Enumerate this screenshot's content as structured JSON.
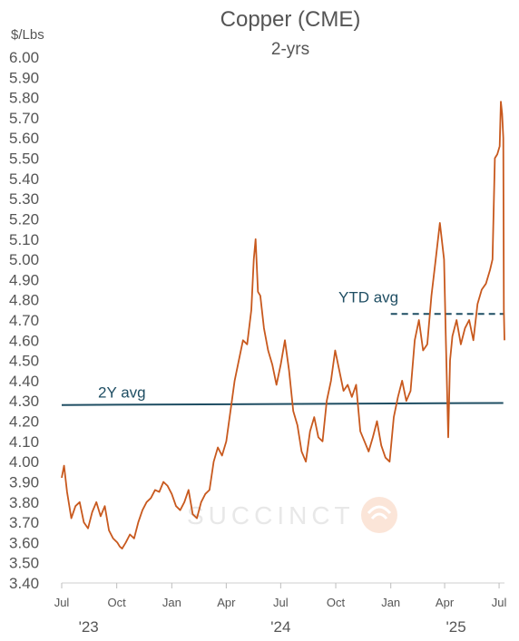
{
  "chart_data": {
    "type": "line",
    "title": "Copper (CME)",
    "subtitle": "2-yrs",
    "ylabel": "$/Lbs",
    "ylim": [
      3.4,
      6.0
    ],
    "yticks": [
      "6.00",
      "5.90",
      "5.80",
      "5.70",
      "5.60",
      "5.50",
      "5.40",
      "5.30",
      "5.20",
      "5.10",
      "5.00",
      "4.90",
      "4.80",
      "4.70",
      "4.60",
      "4.50",
      "4.40",
      "4.30",
      "4.20",
      "4.10",
      "4.00",
      "3.90",
      "3.80",
      "3.70",
      "3.60",
      "3.50",
      "3.40"
    ],
    "xticks": [
      "Jul",
      "Oct",
      "Jan",
      "Apr",
      "Jul",
      "Oct",
      "Jan",
      "Apr",
      "Jul"
    ],
    "xtick_dates": [
      "2023-07-01",
      "2023-10-01",
      "2024-01-01",
      "2024-04-01",
      "2024-07-01",
      "2024-10-01",
      "2025-01-01",
      "2025-04-01",
      "2025-07-01"
    ],
    "years": [
      "'23",
      "'24",
      "'25"
    ],
    "x_range": [
      "2023-07-01",
      "2025-07-10"
    ],
    "series": [
      {
        "color": "#c8591e",
        "points": [
          [
            "2023-07-01",
            3.92
          ],
          [
            "2023-07-05",
            3.98
          ],
          [
            "2023-07-10",
            3.85
          ],
          [
            "2023-07-17",
            3.72
          ],
          [
            "2023-07-24",
            3.78
          ],
          [
            "2023-07-31",
            3.8
          ],
          [
            "2023-08-07",
            3.7
          ],
          [
            "2023-08-14",
            3.67
          ],
          [
            "2023-08-21",
            3.75
          ],
          [
            "2023-08-28",
            3.8
          ],
          [
            "2023-09-04",
            3.73
          ],
          [
            "2023-09-11",
            3.78
          ],
          [
            "2023-09-18",
            3.66
          ],
          [
            "2023-09-25",
            3.62
          ],
          [
            "2023-10-02",
            3.6
          ],
          [
            "2023-10-06",
            3.58
          ],
          [
            "2023-10-10",
            3.57
          ],
          [
            "2023-10-16",
            3.6
          ],
          [
            "2023-10-23",
            3.64
          ],
          [
            "2023-10-30",
            3.62
          ],
          [
            "2023-11-06",
            3.7
          ],
          [
            "2023-11-13",
            3.76
          ],
          [
            "2023-11-20",
            3.8
          ],
          [
            "2023-11-27",
            3.82
          ],
          [
            "2023-12-04",
            3.86
          ],
          [
            "2023-12-11",
            3.85
          ],
          [
            "2023-12-18",
            3.9
          ],
          [
            "2023-12-25",
            3.88
          ],
          [
            "2024-01-01",
            3.84
          ],
          [
            "2024-01-08",
            3.78
          ],
          [
            "2024-01-15",
            3.76
          ],
          [
            "2024-01-22",
            3.8
          ],
          [
            "2024-01-29",
            3.86
          ],
          [
            "2024-02-05",
            3.74
          ],
          [
            "2024-02-12",
            3.72
          ],
          [
            "2024-02-19",
            3.8
          ],
          [
            "2024-02-26",
            3.84
          ],
          [
            "2024-03-04",
            3.86
          ],
          [
            "2024-03-11",
            4.0
          ],
          [
            "2024-03-18",
            4.07
          ],
          [
            "2024-03-25",
            4.03
          ],
          [
            "2024-04-01",
            4.1
          ],
          [
            "2024-04-08",
            4.25
          ],
          [
            "2024-04-15",
            4.4
          ],
          [
            "2024-04-22",
            4.5
          ],
          [
            "2024-04-29",
            4.6
          ],
          [
            "2024-05-06",
            4.58
          ],
          [
            "2024-05-13",
            4.75
          ],
          [
            "2024-05-17",
            5.0
          ],
          [
            "2024-05-20",
            5.1
          ],
          [
            "2024-05-24",
            4.84
          ],
          [
            "2024-05-28",
            4.82
          ],
          [
            "2024-06-03",
            4.66
          ],
          [
            "2024-06-10",
            4.55
          ],
          [
            "2024-06-17",
            4.48
          ],
          [
            "2024-06-24",
            4.38
          ],
          [
            "2024-07-01",
            4.48
          ],
          [
            "2024-07-08",
            4.6
          ],
          [
            "2024-07-15",
            4.45
          ],
          [
            "2024-07-22",
            4.25
          ],
          [
            "2024-07-29",
            4.18
          ],
          [
            "2024-08-05",
            4.05
          ],
          [
            "2024-08-12",
            4.0
          ],
          [
            "2024-08-19",
            4.15
          ],
          [
            "2024-08-26",
            4.22
          ],
          [
            "2024-09-02",
            4.12
          ],
          [
            "2024-09-09",
            4.1
          ],
          [
            "2024-09-16",
            4.3
          ],
          [
            "2024-09-23",
            4.4
          ],
          [
            "2024-09-30",
            4.55
          ],
          [
            "2024-10-07",
            4.45
          ],
          [
            "2024-10-14",
            4.35
          ],
          [
            "2024-10-21",
            4.38
          ],
          [
            "2024-10-28",
            4.32
          ],
          [
            "2024-11-04",
            4.38
          ],
          [
            "2024-11-11",
            4.15
          ],
          [
            "2024-11-18",
            4.1
          ],
          [
            "2024-11-25",
            4.05
          ],
          [
            "2024-12-02",
            4.12
          ],
          [
            "2024-12-09",
            4.2
          ],
          [
            "2024-12-16",
            4.08
          ],
          [
            "2024-12-23",
            4.02
          ],
          [
            "2024-12-30",
            4.0
          ],
          [
            "2025-01-06",
            4.22
          ],
          [
            "2025-01-13",
            4.32
          ],
          [
            "2025-01-20",
            4.4
          ],
          [
            "2025-01-27",
            4.3
          ],
          [
            "2025-02-03",
            4.35
          ],
          [
            "2025-02-10",
            4.6
          ],
          [
            "2025-02-17",
            4.7
          ],
          [
            "2025-02-24",
            4.55
          ],
          [
            "2025-03-03",
            4.58
          ],
          [
            "2025-03-10",
            4.82
          ],
          [
            "2025-03-17",
            5.0
          ],
          [
            "2025-03-24",
            5.18
          ],
          [
            "2025-03-31",
            5.0
          ],
          [
            "2025-04-03",
            4.6
          ],
          [
            "2025-04-07",
            4.12
          ],
          [
            "2025-04-10",
            4.5
          ],
          [
            "2025-04-14",
            4.62
          ],
          [
            "2025-04-21",
            4.7
          ],
          [
            "2025-04-28",
            4.58
          ],
          [
            "2025-05-05",
            4.66
          ],
          [
            "2025-05-12",
            4.7
          ],
          [
            "2025-05-19",
            4.6
          ],
          [
            "2025-05-26",
            4.78
          ],
          [
            "2025-06-02",
            4.85
          ],
          [
            "2025-06-09",
            4.88
          ],
          [
            "2025-06-16",
            4.95
          ],
          [
            "2025-06-20",
            5.0
          ],
          [
            "2025-06-24",
            5.5
          ],
          [
            "2025-06-28",
            5.52
          ],
          [
            "2025-07-02",
            5.56
          ],
          [
            "2025-07-04",
            5.78
          ],
          [
            "2025-07-06",
            5.72
          ],
          [
            "2025-07-08",
            5.6
          ],
          [
            "2025-07-09",
            4.75
          ],
          [
            "2025-07-10",
            4.6
          ]
        ]
      }
    ],
    "reference_lines": [
      {
        "label": "2Y avg",
        "from": [
          "2023-07-01",
          4.28
        ],
        "to": [
          "2025-07-08",
          4.29
        ],
        "style": "solid",
        "color": "#1f4e63"
      },
      {
        "label": "YTD avg",
        "from": [
          "2025-01-01",
          4.73
        ],
        "to": [
          "2025-07-08",
          4.73
        ],
        "style": "dashed",
        "color": "#1f4e63"
      }
    ],
    "watermark": "SUCCINCT",
    "grid": false
  }
}
